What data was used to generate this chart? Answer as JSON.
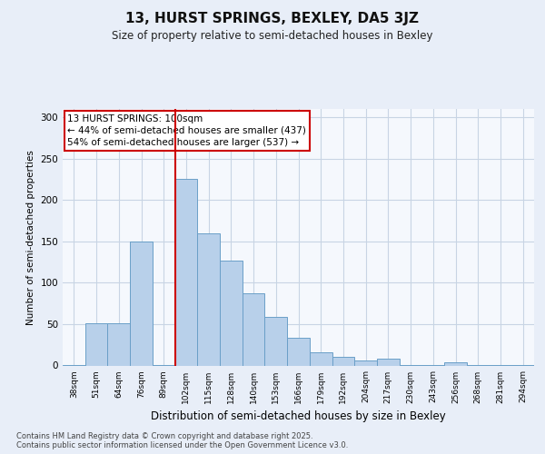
{
  "title": "13, HURST SPRINGS, BEXLEY, DA5 3JZ",
  "subtitle": "Size of property relative to semi-detached houses in Bexley",
  "xlabel": "Distribution of semi-detached houses by size in Bexley",
  "ylabel": "Number of semi-detached properties",
  "categories": [
    "38sqm",
    "51sqm",
    "64sqm",
    "76sqm",
    "89sqm",
    "102sqm",
    "115sqm",
    "128sqm",
    "140sqm",
    "153sqm",
    "166sqm",
    "179sqm",
    "192sqm",
    "204sqm",
    "217sqm",
    "230sqm",
    "243sqm",
    "256sqm",
    "268sqm",
    "281sqm",
    "294sqm"
  ],
  "values": [
    1,
    51,
    51,
    150,
    1,
    225,
    160,
    127,
    87,
    59,
    33,
    16,
    10,
    6,
    8,
    1,
    1,
    4,
    1,
    1,
    1
  ],
  "bar_color": "#b8d0ea",
  "bar_edge_color": "#6a9fc8",
  "vline_color": "#cc0000",
  "annotation_text": "13 HURST SPRINGS: 100sqm\n← 44% of semi-detached houses are smaller (437)\n54% of semi-detached houses are larger (537) →",
  "annotation_box_color": "#cc0000",
  "ylim": [
    0,
    310
  ],
  "yticks": [
    0,
    50,
    100,
    150,
    200,
    250,
    300
  ],
  "footnote": "Contains HM Land Registry data © Crown copyright and database right 2025.\nContains public sector information licensed under the Open Government Licence v3.0.",
  "bg_color": "#e8eef8",
  "plot_bg_color": "#f5f8fd",
  "grid_color": "#c8d4e4"
}
